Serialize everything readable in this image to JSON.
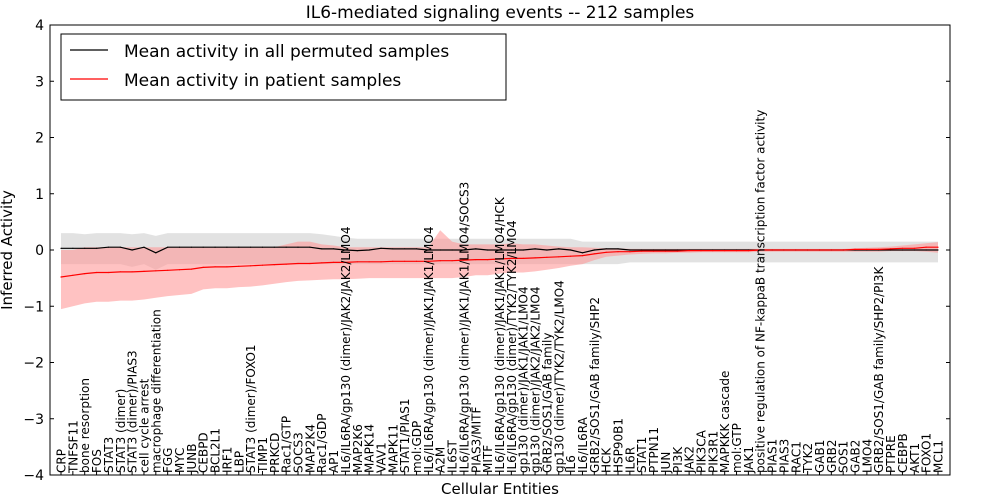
{
  "chart_data": {
    "type": "line",
    "title": "IL6-mediated signaling events -- 212 samples",
    "xlabel": "Cellular Entities",
    "ylabel": "Inferred Activity",
    "ylim": [
      -4,
      4
    ],
    "yticks": [
      -4,
      -3,
      -2,
      -1,
      0,
      1,
      2,
      3,
      4
    ],
    "grid": false,
    "legend_position": "top-left",
    "categories": [
      "CRP",
      "TNFSF11",
      "bone resorption",
      "FOS",
      "STAT3",
      "STAT3 (dimer)",
      "STAT3 (dimer)/PIAS3",
      "cell cycle arrest",
      "macrophage differentiation",
      "FGG",
      "MYC",
      "JUNB",
      "CEBPD",
      "BCL2L1",
      "IRF1",
      "LBP",
      "STAT3 (dimer)/FOXO1",
      "TIMP1",
      "PRKCD",
      "Rac1/GTP",
      "SOCS3",
      "MAP2K4",
      "Rac1/GDP",
      "AP1",
      "IL6/IL6RA/gp130 (dimer)/JAK2/JAK2/LMO4",
      "MAP2K6",
      "MAPK14",
      "VAV1",
      "MAPK11",
      "STAT1/PIAS1",
      "mol:GDP",
      "IL6/IL6RA/gp130 (dimer)/JAK1/JAK1/LMO4",
      "A2M",
      "IL6ST",
      "IL6/IL6RA/gp130 (dimer)/JAK1/JAK1/LMO4/SOCS3",
      "PIAS3/MITF",
      "MITF",
      "IL6/IL6RA/gp130 (dimer)/JAK1/JAK1/LMO4/HCK",
      "IL6/IL6RA/gp130 (dimer)/TYK2/TYK2/LMO4",
      "gp130 (dimer)/JAK1/JAK1/LMO4",
      "gp130 (dimer)/JAK2/JAK2/LMO4",
      "GRB2/SOS1/GAB family",
      "gp130 (dimer)/TYK2/TYK2/LMO4",
      "IL6",
      "IL6/IL6RA",
      "GRB2/SOS1/GAB family/SHP2",
      "HCK",
      "HSP90B1",
      "IL6R",
      "STAT1",
      "PTPN11",
      "JUN",
      "PI3K",
      "JAK2",
      "PIK3CA",
      "PIK3R1",
      "MAPKKK cascade",
      "mol:GTP",
      "JAK1",
      "positive regulation of NF-kappaB transcription factor activity",
      "PIAS1",
      "PIAS3",
      "RAC1",
      "TYK2",
      "GAB1",
      "GRB2",
      "SOS1",
      "GAB2",
      "LMO4",
      "GRB2/SOS1/GAB family/SHP2/PI3K",
      "PTPRE",
      "CEBPB",
      "AKT1",
      "FOXO1",
      "MCL1"
    ],
    "series": [
      {
        "name": "Mean activity in all permuted samples",
        "color": "#000000",
        "band_color": "#bbbbbb",
        "values": [
          0.03,
          0.03,
          0.03,
          0.03,
          0.05,
          0.05,
          0.0,
          0.05,
          -0.05,
          0.05,
          0.05,
          0.05,
          0.05,
          0.05,
          0.05,
          0.05,
          0.05,
          0.05,
          0.05,
          0.05,
          0.05,
          0.05,
          0.02,
          0.02,
          0.0,
          -0.01,
          0.0,
          0.03,
          0.02,
          0.02,
          0.02,
          0.0,
          0.0,
          0.0,
          0.0,
          0.02,
          0.0,
          0.0,
          0.0,
          0.0,
          0.02,
          0.0,
          0.02,
          0.0,
          -0.05,
          0.0,
          0.02,
          0.02,
          0.0,
          0.0,
          0.0,
          0.0,
          0.0,
          0.0,
          0.0,
          0.0,
          0.0,
          0.0,
          0.0,
          0.0,
          0.0,
          0.0,
          0.0,
          0.0,
          0.0,
          0.0,
          0.0,
          0.0,
          0.0,
          0.0,
          0.0,
          0.0,
          0.0,
          0.0,
          0.0
        ],
        "lower": [
          -0.25,
          -0.25,
          -0.25,
          -0.25,
          -0.25,
          -0.25,
          -0.3,
          -0.25,
          -0.35,
          -0.25,
          -0.25,
          -0.25,
          -0.25,
          -0.25,
          -0.25,
          -0.25,
          -0.25,
          -0.25,
          -0.25,
          -0.25,
          -0.25,
          -0.25,
          -0.25,
          -0.25,
          -0.25,
          -0.25,
          -0.25,
          -0.25,
          -0.25,
          -0.25,
          -0.25,
          -0.25,
          -0.25,
          -0.25,
          -0.25,
          -0.25,
          -0.25,
          -0.25,
          -0.25,
          -0.25,
          -0.25,
          -0.25,
          -0.25,
          -0.25,
          -0.25,
          -0.25,
          -0.25,
          -0.25,
          -0.22,
          -0.22,
          -0.22,
          -0.22,
          -0.22,
          -0.22,
          -0.22,
          -0.22,
          -0.22,
          -0.22,
          -0.22,
          -0.22,
          -0.22,
          -0.22,
          -0.22,
          -0.22,
          -0.22,
          -0.22,
          -0.22,
          -0.22,
          -0.22,
          -0.22,
          -0.22,
          -0.22,
          -0.22,
          -0.22,
          -0.22
        ],
        "upper": [
          0.3,
          0.3,
          0.28,
          0.3,
          0.3,
          0.3,
          0.28,
          0.3,
          0.25,
          0.3,
          0.3,
          0.3,
          0.3,
          0.3,
          0.3,
          0.3,
          0.3,
          0.3,
          0.3,
          0.3,
          0.3,
          0.3,
          0.28,
          0.25,
          0.22,
          0.2,
          0.2,
          0.2,
          0.2,
          0.2,
          0.2,
          0.2,
          0.2,
          0.2,
          0.2,
          0.2,
          0.2,
          0.2,
          0.2,
          0.2,
          0.2,
          0.2,
          0.2,
          0.2,
          0.15,
          0.15,
          0.15,
          0.15,
          0.15,
          0.15,
          0.15,
          0.15,
          0.15,
          0.15,
          0.15,
          0.15,
          0.15,
          0.15,
          0.15,
          0.15,
          0.15,
          0.15,
          0.15,
          0.15,
          0.15,
          0.15,
          0.15,
          0.15,
          0.15,
          0.15,
          0.15,
          0.15,
          0.15,
          0.15,
          0.15
        ]
      },
      {
        "name": "Mean activity in patient samples",
        "color": "#ff0000",
        "band_color": "#ff9a9a",
        "values": [
          -0.48,
          -0.45,
          -0.42,
          -0.4,
          -0.4,
          -0.39,
          -0.39,
          -0.38,
          -0.37,
          -0.36,
          -0.35,
          -0.34,
          -0.31,
          -0.3,
          -0.3,
          -0.29,
          -0.28,
          -0.27,
          -0.26,
          -0.25,
          -0.24,
          -0.24,
          -0.23,
          -0.22,
          -0.22,
          -0.21,
          -0.21,
          -0.21,
          -0.2,
          -0.2,
          -0.2,
          -0.2,
          -0.19,
          -0.19,
          -0.18,
          -0.17,
          -0.17,
          -0.16,
          -0.15,
          -0.15,
          -0.14,
          -0.13,
          -0.12,
          -0.11,
          -0.1,
          -0.07,
          -0.04,
          -0.03,
          -0.03,
          -0.02,
          -0.02,
          -0.02,
          -0.02,
          -0.01,
          -0.01,
          -0.01,
          -0.01,
          -0.01,
          -0.01,
          0.0,
          0.0,
          0.0,
          0.0,
          0.0,
          0.0,
          0.0,
          0.0,
          0.01,
          0.01,
          0.01,
          0.02,
          0.03,
          0.03,
          0.05,
          0.05
        ],
        "lower": [
          -1.05,
          -1.0,
          -0.95,
          -0.92,
          -0.92,
          -0.9,
          -0.9,
          -0.88,
          -0.85,
          -0.82,
          -0.8,
          -0.78,
          -0.7,
          -0.68,
          -0.68,
          -0.66,
          -0.65,
          -0.63,
          -0.6,
          -0.57,
          -0.55,
          -0.54,
          -0.53,
          -0.52,
          -0.52,
          -0.51,
          -0.5,
          -0.5,
          -0.5,
          -0.5,
          -0.5,
          -0.5,
          -0.5,
          -0.5,
          -0.48,
          -0.45,
          -0.45,
          -0.42,
          -0.4,
          -0.4,
          -0.38,
          -0.35,
          -0.32,
          -0.28,
          -0.25,
          -0.18,
          -0.12,
          -0.1,
          -0.08,
          -0.07,
          -0.06,
          -0.06,
          -0.05,
          -0.05,
          -0.04,
          -0.04,
          -0.04,
          -0.04,
          -0.04,
          -0.03,
          -0.03,
          -0.03,
          -0.03,
          -0.03,
          -0.03,
          -0.03,
          -0.03,
          -0.03,
          -0.03,
          -0.03,
          -0.02,
          -0.02,
          -0.02,
          -0.03,
          -0.05
        ],
        "upper": [
          0.0,
          0.0,
          0.05,
          0.05,
          0.05,
          0.05,
          0.05,
          0.05,
          0.05,
          0.05,
          0.05,
          0.05,
          0.05,
          0.05,
          0.05,
          0.05,
          0.05,
          0.05,
          0.05,
          0.1,
          0.15,
          0.15,
          0.1,
          0.08,
          0.05,
          0.05,
          0.05,
          0.05,
          0.05,
          0.05,
          0.05,
          0.05,
          0.35,
          0.15,
          0.1,
          0.1,
          0.1,
          0.1,
          0.12,
          0.1,
          0.1,
          0.08,
          0.06,
          0.05,
          0.05,
          0.04,
          0.03,
          0.03,
          0.02,
          0.02,
          0.02,
          0.02,
          0.02,
          0.02,
          0.02,
          0.02,
          0.02,
          0.02,
          0.02,
          0.02,
          0.02,
          0.02,
          0.02,
          0.02,
          0.02,
          0.02,
          0.02,
          0.03,
          0.04,
          0.05,
          0.06,
          0.08,
          0.1,
          0.12,
          0.14
        ]
      }
    ]
  }
}
